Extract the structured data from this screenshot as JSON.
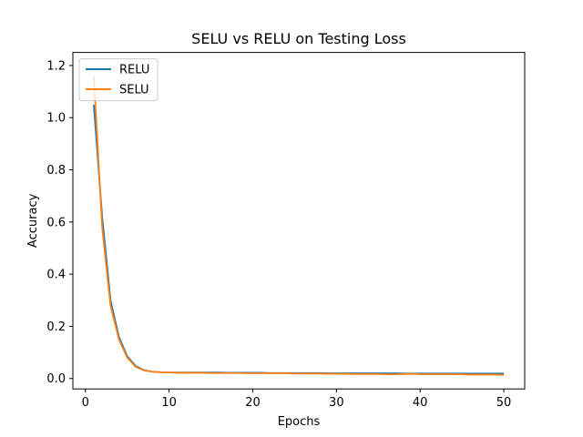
{
  "chart_data": {
    "type": "line",
    "title": "SELU vs RELU on Testing Loss",
    "xlabel": "Epochs",
    "ylabel": "Accuracy",
    "xlim": [
      -1.5,
      52.5
    ],
    "ylim": [
      -0.04,
      1.25
    ],
    "xticks": [
      0,
      10,
      20,
      30,
      40,
      50
    ],
    "yticks": [
      0.0,
      0.2,
      0.4,
      0.6,
      0.8,
      1.0,
      1.2
    ],
    "ytick_labels": [
      "0.0",
      "0.2",
      "0.4",
      "0.6",
      "0.8",
      "1.0",
      "1.2"
    ],
    "grid": false,
    "legend_position": "top-left",
    "series": [
      {
        "name": "RELU",
        "color": "#1f77b4",
        "x": [
          1,
          2,
          3,
          4,
          5,
          6,
          7,
          8,
          9,
          10,
          11,
          12,
          13,
          14,
          15,
          16,
          17,
          18,
          19,
          20,
          21,
          22,
          23,
          24,
          25,
          26,
          27,
          28,
          29,
          30,
          31,
          32,
          33,
          34,
          35,
          36,
          37,
          38,
          39,
          40,
          41,
          42,
          43,
          44,
          45,
          46,
          47,
          48,
          49,
          50
        ],
        "y": [
          1.05,
          0.62,
          0.3,
          0.16,
          0.085,
          0.048,
          0.032,
          0.026,
          0.024,
          0.023,
          0.023,
          0.023,
          0.023,
          0.023,
          0.023,
          0.023,
          0.022,
          0.022,
          0.022,
          0.022,
          0.022,
          0.021,
          0.021,
          0.021,
          0.021,
          0.021,
          0.021,
          0.021,
          0.02,
          0.02,
          0.02,
          0.02,
          0.02,
          0.02,
          0.02,
          0.02,
          0.02,
          0.019,
          0.019,
          0.019,
          0.019,
          0.019,
          0.019,
          0.019,
          0.019,
          0.019,
          0.019,
          0.019,
          0.019,
          0.019
        ]
      },
      {
        "name": "SELU",
        "color": "#ff7f0e",
        "x": [
          1,
          2,
          3,
          4,
          5,
          6,
          7,
          8,
          9,
          10,
          11,
          12,
          13,
          14,
          15,
          16,
          17,
          18,
          19,
          20,
          21,
          22,
          23,
          24,
          25,
          26,
          27,
          28,
          29,
          30,
          31,
          32,
          33,
          34,
          35,
          36,
          37,
          38,
          39,
          40,
          41,
          42,
          43,
          44,
          45,
          46,
          47,
          48,
          49,
          50
        ],
        "y": [
          1.16,
          0.58,
          0.28,
          0.15,
          0.08,
          0.045,
          0.031,
          0.026,
          0.024,
          0.023,
          0.022,
          0.022,
          0.022,
          0.022,
          0.021,
          0.021,
          0.021,
          0.021,
          0.02,
          0.02,
          0.02,
          0.02,
          0.02,
          0.02,
          0.019,
          0.019,
          0.019,
          0.019,
          0.018,
          0.018,
          0.018,
          0.017,
          0.017,
          0.017,
          0.017,
          0.016,
          0.016,
          0.017,
          0.018,
          0.016,
          0.016,
          0.016,
          0.016,
          0.016,
          0.016,
          0.015,
          0.015,
          0.015,
          0.015,
          0.014
        ]
      }
    ]
  }
}
